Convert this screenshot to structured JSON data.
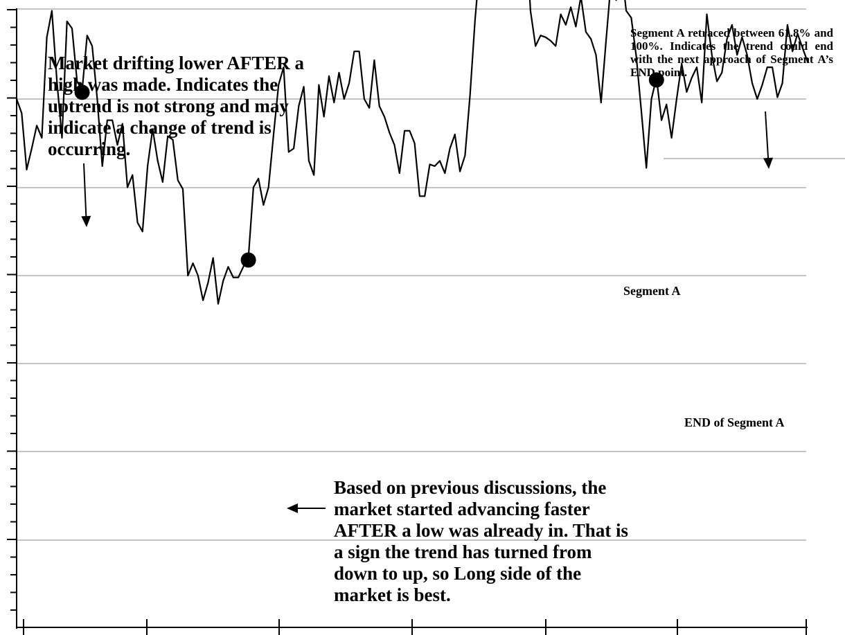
{
  "chart_data": {
    "type": "line",
    "title": "",
    "xlabel": "",
    "ylabel": "",
    "grid": true,
    "series": [
      {
        "values": [
          100,
          92,
          60,
          72,
          85,
          78,
          135,
          150,
          110,
          78,
          144,
          140,
          110,
          105,
          136,
          130,
          100,
          62,
          88,
          88,
          74,
          86,
          50,
          57,
          30,
          25,
          62,
          83,
          65,
          53,
          79,
          77,
          54,
          49,
          0,
          7,
          0,
          -14,
          -4,
          10,
          -16,
          -3,
          5,
          -1,
          -1,
          5,
          10,
          50,
          55,
          40,
          50,
          80,
          108,
          118,
          70,
          72,
          96,
          107,
          65,
          57,
          108,
          90,
          113,
          98,
          115,
          100,
          109,
          127,
          127,
          100,
          95,
          122,
          96,
          90,
          81,
          74,
          58,
          82,
          82,
          75,
          45,
          45,
          63,
          62,
          65,
          58,
          72,
          80,
          59,
          68,
          102,
          145,
          178,
          173,
          192,
          176,
          188,
          205,
          184,
          202,
          173,
          200,
          150,
          130,
          136,
          135,
          133,
          130,
          148,
          142,
          152,
          141,
          158,
          138,
          134,
          125,
          98,
          133,
          167,
          156,
          175,
          150,
          146,
          124,
          93,
          61,
          100,
          112,
          88,
          97,
          78,
          100,
          120,
          104,
          112,
          118,
          98,
          148,
          125,
          110,
          115,
          134,
          142,
          125,
          135,
          125,
          109,
          100,
          108,
          118,
          118,
          101,
          109,
          142,
          127,
          137,
          129,
          121
        ]
      }
    ]
  },
  "annotations": {
    "top_left": "Market drifting lower AFTER a high was made. Indicates the uptrend is not strong and may indicate a change of trend is occurring.",
    "top_right": "Segment A retraced between 61.8% and 100%. Indicates the trend could end with the next approach of Segment A’s END point.",
    "bottom_middle": "Based on previous discussions, the market started advancing faster AFTER a low was already in. That is a sign the trend has turned from down to up, so Long side of the market is best.",
    "segment_a": "Segment A",
    "end_segment_a": "END of Segment A"
  }
}
